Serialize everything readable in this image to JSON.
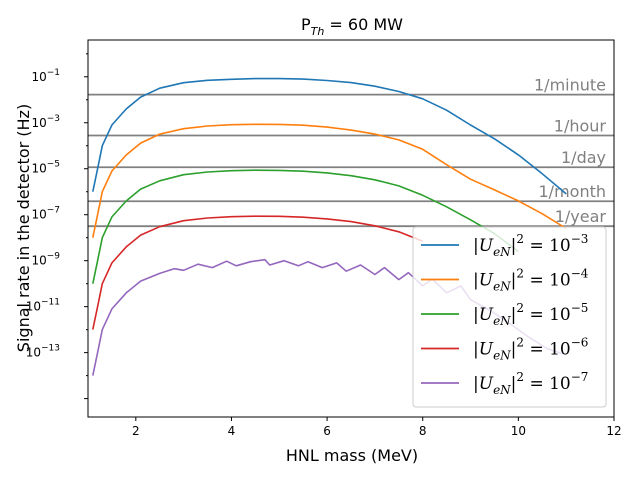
{
  "chart_data": {
    "type": "line",
    "title": "P_Th = 60 MW",
    "title_parts": {
      "base": "P",
      "sub": "Th",
      "rest": " = 60 MW"
    },
    "xlabel": "HNL mass (MeV)",
    "ylabel": "Signal rate in the detector (Hz)",
    "xlim": [
      1.0,
      12.0
    ],
    "ylim_log10": [
      -15.8,
      0.6
    ],
    "yscale": "log",
    "x_ticks": [
      {
        "value": 2,
        "label": "2"
      },
      {
        "value": 4,
        "label": "4"
      },
      {
        "value": 6,
        "label": "6"
      },
      {
        "value": 8,
        "label": "8"
      },
      {
        "value": 10,
        "label": "10"
      },
      {
        "value": 12,
        "label": "12"
      }
    ],
    "y_ticks": [
      {
        "exp": -1,
        "label": "10^-1"
      },
      {
        "exp": -3,
        "label": "10^-3"
      },
      {
        "exp": -5,
        "label": "10^-5"
      },
      {
        "exp": -7,
        "label": "10^-7"
      },
      {
        "exp": -9,
        "label": "10^-9"
      },
      {
        "exp": -11,
        "label": "10^-11"
      },
      {
        "exp": -13,
        "label": "10^-13"
      }
    ],
    "reference_lines": [
      {
        "label": "1/minute",
        "value": 0.0167,
        "color": "#808080"
      },
      {
        "label": "1/hour",
        "value": 0.000278,
        "color": "#808080"
      },
      {
        "label": "1/day",
        "value": 1.16e-05,
        "color": "#808080"
      },
      {
        "label": "1/month",
        "value": 3.86e-07,
        "color": "#808080"
      },
      {
        "label": "1/year",
        "value": 3.17e-08,
        "color": "#808080"
      }
    ],
    "series": [
      {
        "name": "|U_eN|^2 = 10^-3",
        "legend": {
          "base": "|U",
          "sub": "eN",
          "mid": "|",
          "sup1": "2",
          "eq": " = 10",
          "sup2": "−3"
        },
        "color": "#1f77b4",
        "x": [
          1.1,
          1.2,
          1.3,
          1.5,
          1.8,
          2.1,
          2.5,
          3.0,
          3.5,
          4.0,
          4.5,
          5.0,
          5.5,
          6.0,
          6.5,
          7.0,
          7.5,
          8.0,
          8.5,
          9.0,
          9.5,
          10.0,
          10.5,
          11.0
        ],
        "y": [
          1e-06,
          1e-05,
          0.0001,
          0.0008,
          0.004,
          0.013,
          0.032,
          0.055,
          0.07,
          0.078,
          0.083,
          0.083,
          0.079,
          0.069,
          0.056,
          0.039,
          0.023,
          0.011,
          0.0035,
          0.0008,
          0.0002,
          4e-05,
          6e-06,
          8e-07
        ]
      },
      {
        "name": "|U_eN|^2 = 10^-4",
        "legend": {
          "base": "|U",
          "sub": "eN",
          "mid": "|",
          "sup1": "2",
          "eq": " = 10",
          "sup2": "−4"
        },
        "color": "#ff7f0e",
        "x": [
          1.1,
          1.2,
          1.3,
          1.5,
          1.8,
          2.1,
          2.5,
          3.0,
          3.5,
          4.0,
          4.5,
          5.0,
          5.5,
          6.0,
          6.5,
          7.0,
          7.5,
          8.0,
          8.5,
          9.0,
          9.5,
          10.0,
          10.5,
          11.0
        ],
        "y": [
          1e-08,
          1e-07,
          1e-06,
          8e-06,
          4e-05,
          0.00013,
          0.00032,
          0.00055,
          0.00072,
          0.00082,
          0.00086,
          0.00085,
          0.00078,
          0.00065,
          0.00048,
          0.00032,
          0.00018,
          7e-05,
          1.5e-05,
          3.5e-06,
          1.2e-06,
          4e-07,
          1.1e-07,
          2.5e-08
        ]
      },
      {
        "name": "|U_eN|^2 = 10^-5",
        "legend": {
          "base": "|U",
          "sub": "eN",
          "mid": "|",
          "sup1": "2",
          "eq": " = 10",
          "sup2": "−5"
        },
        "color": "#2ca02c",
        "x": [
          1.1,
          1.2,
          1.3,
          1.5,
          1.8,
          2.1,
          2.5,
          3.0,
          3.5,
          4.0,
          4.5,
          5.0,
          5.5,
          6.0,
          6.5,
          7.0,
          7.5,
          8.0,
          8.5,
          9.0,
          9.5,
          10.0
        ],
        "y": [
          1e-10,
          1e-09,
          1e-08,
          8e-08,
          4e-07,
          1.3e-06,
          3e-06,
          5.5e-06,
          7.2e-06,
          8.2e-06,
          8.6e-06,
          8.5e-06,
          7.8e-06,
          6.6e-06,
          5e-06,
          3.3e-06,
          1.8e-06,
          7e-07,
          2.2e-07,
          6e-08,
          1.5e-08,
          2.5e-09
        ]
      },
      {
        "name": "|U_eN|^2 = 10^-6",
        "legend": {
          "base": "|U",
          "sub": "eN",
          "mid": "|",
          "sup1": "2",
          "eq": " = 10",
          "sup2": "−6"
        },
        "color": "#d62728",
        "x": [
          1.1,
          1.2,
          1.3,
          1.5,
          1.8,
          2.1,
          2.5,
          3.0,
          3.5,
          4.0,
          4.5,
          5.0,
          5.5,
          6.0,
          6.5,
          7.0,
          7.5,
          8.0
        ],
        "y": [
          1e-12,
          1e-11,
          1e-10,
          8e-10,
          4e-09,
          1.3e-08,
          3e-08,
          5.5e-08,
          7.2e-08,
          8.2e-08,
          8.6e-08,
          8.5e-08,
          7.8e-08,
          6.6e-08,
          5e-08,
          3.3e-08,
          1.8e-08,
          7e-09
        ]
      },
      {
        "name": "|U_eN|^2 = 10^-7",
        "legend": {
          "base": "|U",
          "sub": "eN",
          "mid": "|",
          "sup1": "2",
          "eq": " = 10",
          "sup2": "−7"
        },
        "color": "#9467bd",
        "x": [
          1.1,
          1.2,
          1.3,
          1.5,
          1.8,
          2.1,
          2.5,
          2.8,
          3.0,
          3.3,
          3.6,
          3.9,
          4.1,
          4.4,
          4.7,
          4.8,
          5.1,
          5.4,
          5.6,
          5.9,
          6.2,
          6.4,
          6.7,
          7.0,
          7.2,
          7.5,
          7.7,
          8.0,
          8.2,
          8.5,
          8.8,
          9.0,
          9.4,
          9.8,
          10.2,
          10.6,
          11.0
        ],
        "y": [
          1e-14,
          1e-13,
          1e-12,
          8e-12,
          4e-11,
          1.3e-10,
          2.8e-10,
          4.5e-10,
          3.8e-10,
          7e-10,
          5e-10,
          9.5e-10,
          6e-10,
          9e-10,
          1.1e-09,
          6.5e-10,
          1e-09,
          6e-10,
          9e-10,
          5e-10,
          8e-10,
          3.5e-10,
          6.5e-10,
          2.5e-10,
          5e-10,
          1.5e-10,
          3e-10,
          8e-11,
          1.6e-10,
          4e-11,
          8e-11,
          2e-11,
          7e-12,
          2e-12,
          5e-13,
          1.5e-13,
          8e-14
        ]
      }
    ],
    "legend_position": "lower-right",
    "grid": false
  }
}
